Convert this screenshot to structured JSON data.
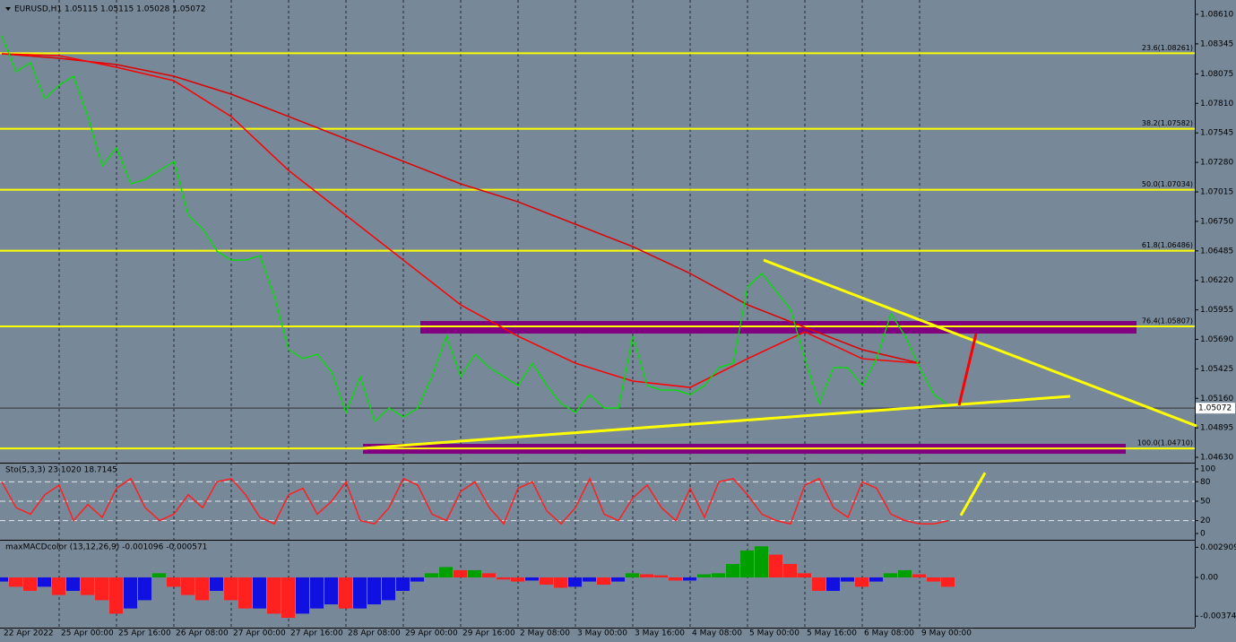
{
  "chart_data": [
    {
      "type": "line",
      "title": "EURUSD,H1  1.05115 1.05115 1.05028 1.05072",
      "x": [
        0,
        4,
        8,
        12,
        16,
        20,
        24,
        28,
        32,
        36,
        40,
        44,
        48,
        52,
        56,
        60,
        64,
        68,
        72,
        76,
        80,
        84,
        88,
        92,
        96,
        100,
        104,
        108,
        112,
        116,
        120,
        124,
        128,
        132,
        136,
        140,
        144,
        148,
        152,
        156,
        160,
        164,
        168,
        172,
        176,
        180,
        184,
        188,
        192,
        196,
        200,
        204,
        208,
        212,
        216,
        220,
        224,
        228,
        232,
        236,
        240,
        244,
        248,
        252,
        256,
        260,
        264
      ],
      "series": [
        {
          "color": "#00e000",
          "values": [
            1.08417,
            1.08094,
            1.08175,
            1.07853,
            1.07974,
            1.08054,
            1.07692,
            1.07248,
            1.0741,
            1.07087,
            1.07128,
            1.07208,
            1.07289,
            1.06805,
            1.06684,
            1.06483,
            1.06402,
            1.06402,
            1.06443,
            1.0608,
            1.05597,
            1.05516,
            1.05557,
            1.05395,
            1.05033,
            1.05355,
            1.04952,
            1.05073,
            1.04992,
            1.05073,
            1.05355,
            1.05718,
            1.05355,
            1.05557,
            1.05436,
            1.05355,
            1.05274,
            1.05476,
            1.05274,
            1.05113,
            1.05033,
            1.05194,
            1.05073,
            1.05073,
            1.05718,
            1.05274,
            1.05234,
            1.05234,
            1.05194,
            1.05274,
            1.05436,
            1.05476,
            1.06161,
            1.06282,
            1.06121,
            1.05959,
            1.05516,
            1.05113,
            1.05436,
            1.05436,
            1.05274,
            1.05516,
            1.05919,
            1.05718,
            1.05436,
            1.05194,
            1.05097
          ]
        },
        {
          "color": "#ff0000",
          "x": [
            0,
            16,
            32,
            48,
            64,
            80,
            96,
            112,
            128,
            144,
            160,
            176,
            192,
            208,
            224,
            240,
            256
          ],
          "values": [
            1.08256,
            1.08239,
            1.08135,
            1.08014,
            1.07692,
            1.07208,
            1.06805,
            1.06402,
            1.06,
            1.05718,
            1.05476,
            1.05315,
            1.05258,
            1.05516,
            1.05758,
            1.05516,
            1.05476
          ]
        },
        {
          "color": "#e00000",
          "x": [
            0,
            16,
            32,
            48,
            64,
            80,
            96,
            112,
            128,
            144,
            160,
            176,
            192,
            208,
            224,
            240,
            256
          ],
          "values": [
            1.08256,
            1.08215,
            1.08159,
            1.08054,
            1.07893,
            1.07692,
            1.0749,
            1.07289,
            1.07087,
            1.06926,
            1.06725,
            1.06523,
            1.06282,
            1.06,
            1.05798,
            1.05597,
            1.05476
          ]
        }
      ],
      "xlim": [
        0,
        333.25
      ],
      "ylim": [
        1.04582,
        1.08739
      ],
      "yticks": [
        {
          "value": 1.0861,
          "label": "1.08610"
        },
        {
          "value": 1.08345,
          "label": "1.08345"
        },
        {
          "value": 1.08075,
          "label": "1.08075"
        },
        {
          "value": 1.0781,
          "label": "1.07810"
        },
        {
          "value": 1.07545,
          "label": "1.07545"
        },
        {
          "value": 1.0728,
          "label": "1.07280"
        },
        {
          "value": 1.07015,
          "label": "1.07015"
        },
        {
          "value": 1.0675,
          "label": "1.06750"
        },
        {
          "value": 1.06485,
          "label": "1.06485"
        },
        {
          "value": 1.0622,
          "label": "1.06220"
        },
        {
          "value": 1.05955,
          "label": "1.05955"
        },
        {
          "value": 1.0569,
          "label": "1.05690"
        },
        {
          "value": 1.05425,
          "label": "1.05425"
        },
        {
          "value": 1.0516,
          "label": "1.05160"
        },
        {
          "value": 1.04895,
          "label": "1.04895"
        },
        {
          "value": 1.0463,
          "label": "1.04630"
        }
      ],
      "xticks": [
        {
          "value": 0,
          "label": "22 Apr 2022"
        },
        {
          "value": 16,
          "label": "25 Apr 00:00"
        },
        {
          "value": 32,
          "label": "25 Apr 16:00"
        },
        {
          "value": 48,
          "label": "26 Apr 08:00"
        },
        {
          "value": 64,
          "label": "27 Apr 00:00"
        },
        {
          "value": 80,
          "label": "27 Apr 16:00"
        },
        {
          "value": 96,
          "label": "28 Apr 08:00"
        },
        {
          "value": 112,
          "label": "29 Apr 00:00"
        },
        {
          "value": 128,
          "label": "29 Apr 16:00"
        },
        {
          "value": 144,
          "label": "2 May 08:00"
        },
        {
          "value": 160,
          "label": "3 May 00:00"
        },
        {
          "value": 176,
          "label": "3 May 16:00"
        },
        {
          "value": 192,
          "label": "4 May 08:00"
        },
        {
          "value": 208,
          "label": "5 May 00:00"
        },
        {
          "value": 224,
          "label": "5 May 16:00"
        },
        {
          "value": 240,
          "label": "6 May 08:00"
        },
        {
          "value": 256,
          "label": "9 May 00:00"
        }
      ],
      "fib_color": "#ffff00",
      "fib_levels": [
        {
          "value": 1.08261,
          "label": "23.6(1.08261)"
        },
        {
          "value": 1.07582,
          "label": "38.2(1.07582)"
        },
        {
          "value": 1.07034,
          "label": "50.0(1.07034)"
        },
        {
          "value": 1.06486,
          "label": "61.8(1.06486)"
        },
        {
          "value": 1.05807,
          "label": "76.4(1.05807)"
        },
        {
          "value": 1.0471,
          "label": "100.0(1.04710)"
        }
      ],
      "zone_color": "#800080",
      "zones": [
        {
          "x": [
            116.75,
            316.5
          ],
          "y": [
            1.05742,
            1.05855
          ]
        },
        {
          "x": [
            100.75,
            313.5
          ],
          "y": [
            1.04662,
            1.04751
          ]
        }
      ],
      "trendlines": [
        {
          "color": "#ffff00",
          "x": [
            100.75,
            298
          ],
          "y": [
            1.04711,
            1.05178
          ]
        },
        {
          "color": "#ffff00",
          "x": [
            212.5,
            333.25
          ],
          "y": [
            1.06402,
            1.04912
          ]
        },
        {
          "color": "#ff0000",
          "x": [
            267,
            271.75
          ],
          "y": [
            1.05097,
            1.05742
          ]
        }
      ],
      "last_price": 1.05072
    },
    {
      "type": "line",
      "title": "Sto(5,3,3) 23.1020 18.7145",
      "series": [
        {
          "color": "#ff2020",
          "values": [
            80,
            40,
            30,
            60,
            75,
            20,
            45,
            25,
            70,
            85,
            40,
            20,
            30,
            60,
            40,
            80,
            85,
            60,
            25,
            15,
            60,
            70,
            30,
            50,
            80,
            20,
            15,
            40,
            85,
            75,
            30,
            20,
            65,
            80,
            40,
            15,
            70,
            80,
            35,
            15,
            40,
            85,
            30,
            20,
            55,
            75,
            40,
            20,
            70,
            25,
            80,
            85,
            60,
            30,
            20,
            15,
            75,
            85,
            40,
            25,
            80,
            70,
            30,
            20,
            15,
            15,
            20
          ]
        }
      ],
      "ylim": [
        -8.3,
        106.9
      ],
      "yticks": [
        0,
        20,
        50,
        80,
        100
      ],
      "levels": [
        20,
        50,
        80
      ],
      "trendlines": [
        {
          "color": "#ffff00",
          "x": [
            267.5,
            274.25
          ],
          "y": [
            28,
            94
          ]
        }
      ]
    },
    {
      "type": "bar",
      "title": "maxMACDcolor (13,12,26,9) -0.001096 -0.000571",
      "values": [
        -0.0004,
        -0.0009,
        -0.0013,
        -0.0009,
        -0.0017,
        -0.0013,
        -0.0017,
        -0.0022,
        -0.0035,
        -0.003,
        -0.0022,
        0.0004,
        -0.0009,
        -0.0017,
        -0.0022,
        -0.0013,
        -0.0022,
        -0.003,
        -0.003,
        -0.0035,
        -0.0039,
        -0.0035,
        -0.003,
        -0.0026,
        -0.003,
        -0.003,
        -0.0026,
        -0.0022,
        -0.0013,
        -0.0004,
        0.0004,
        0.001,
        0.0007,
        0.0007,
        0.0004,
        -0.0002,
        -0.0004,
        -0.0003,
        -0.0007,
        -0.001,
        -0.0009,
        -0.0004,
        -0.0007,
        -0.0004,
        0.0004,
        0.0003,
        0.0002,
        -0.0003,
        -0.0003,
        0.0003,
        0.0004,
        0.0013,
        0.0026,
        0.003,
        0.0022,
        0.0013,
        0.0004,
        -0.0013,
        -0.0013,
        -0.0004,
        -0.0009,
        -0.0004,
        0.0004,
        0.0007,
        0.0003,
        -0.0004,
        -0.0009
      ],
      "up_color": "#00a000",
      "recover_color": "#1010e0",
      "down_color": "#ff2020",
      "ylim": [
        -0.00485,
        0.00346
      ],
      "yticks": [
        0.002909,
        {
          "value": 0,
          "label": "0.00"
        },
        -0.003744
      ]
    }
  ]
}
